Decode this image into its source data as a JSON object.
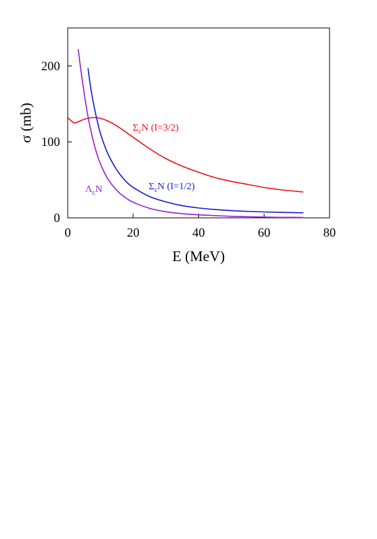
{
  "chart_data": {
    "type": "line",
    "xlabel": "E (MeV)",
    "ylabel": "σ (mb)",
    "xlim": [
      0,
      80
    ],
    "ylim": [
      0,
      250
    ],
    "xticks": [
      "0",
      "20",
      "40",
      "60",
      "80"
    ],
    "yticks": [
      "0",
      "100",
      "200"
    ],
    "grid": false,
    "legend": "none",
    "series": [
      {
        "name": "ΣcN (I=3/2)",
        "label_parts": {
          "base": "Σ",
          "sub": "c",
          "rest": "N (I=3/2)"
        },
        "color": "#e8121b",
        "x": [
          0,
          1,
          2,
          3,
          4,
          6,
          8,
          10,
          12,
          15,
          20,
          25,
          30,
          35,
          40,
          45,
          50,
          55,
          60,
          65,
          72
        ],
        "y": [
          132,
          128,
          125,
          126,
          128,
          131,
          132,
          131,
          128,
          121,
          106,
          91,
          78,
          68,
          60,
          53,
          48,
          44,
          40,
          37,
          34
        ]
      },
      {
        "name": "ΣcN (I=1/2)",
        "label_parts": {
          "base": "Σ",
          "sub": "c",
          "rest": "N (I=1/2)"
        },
        "color": "#1b1bd1",
        "x": [
          6.2,
          7,
          8,
          9,
          10,
          12,
          14,
          16,
          18,
          20,
          25,
          30,
          35,
          40,
          45,
          50,
          55,
          60,
          65,
          72
        ],
        "y": [
          197,
          172,
          148,
          128,
          111,
          87,
          70,
          57,
          47,
          40,
          28,
          21,
          16,
          13,
          11,
          9.5,
          8.5,
          7.8,
          7.2,
          6.6
        ]
      },
      {
        "name": "ΛcN",
        "label_parts": {
          "base": "Λ",
          "sub": "c",
          "rest": "N"
        },
        "color": "#9a1fcf",
        "x": [
          3.2,
          4,
          5,
          6,
          7,
          8,
          9,
          10,
          12,
          14,
          16,
          18,
          20,
          25,
          30,
          35,
          40,
          45,
          50,
          55,
          60,
          65,
          72
        ],
        "y": [
          222,
          195,
          165,
          138,
          116,
          98,
          83,
          71,
          53,
          41,
          32,
          25.5,
          20.5,
          12.5,
          8,
          5.5,
          4,
          3,
          2,
          1.5,
          1,
          0.7,
          0.5
        ]
      }
    ]
  }
}
